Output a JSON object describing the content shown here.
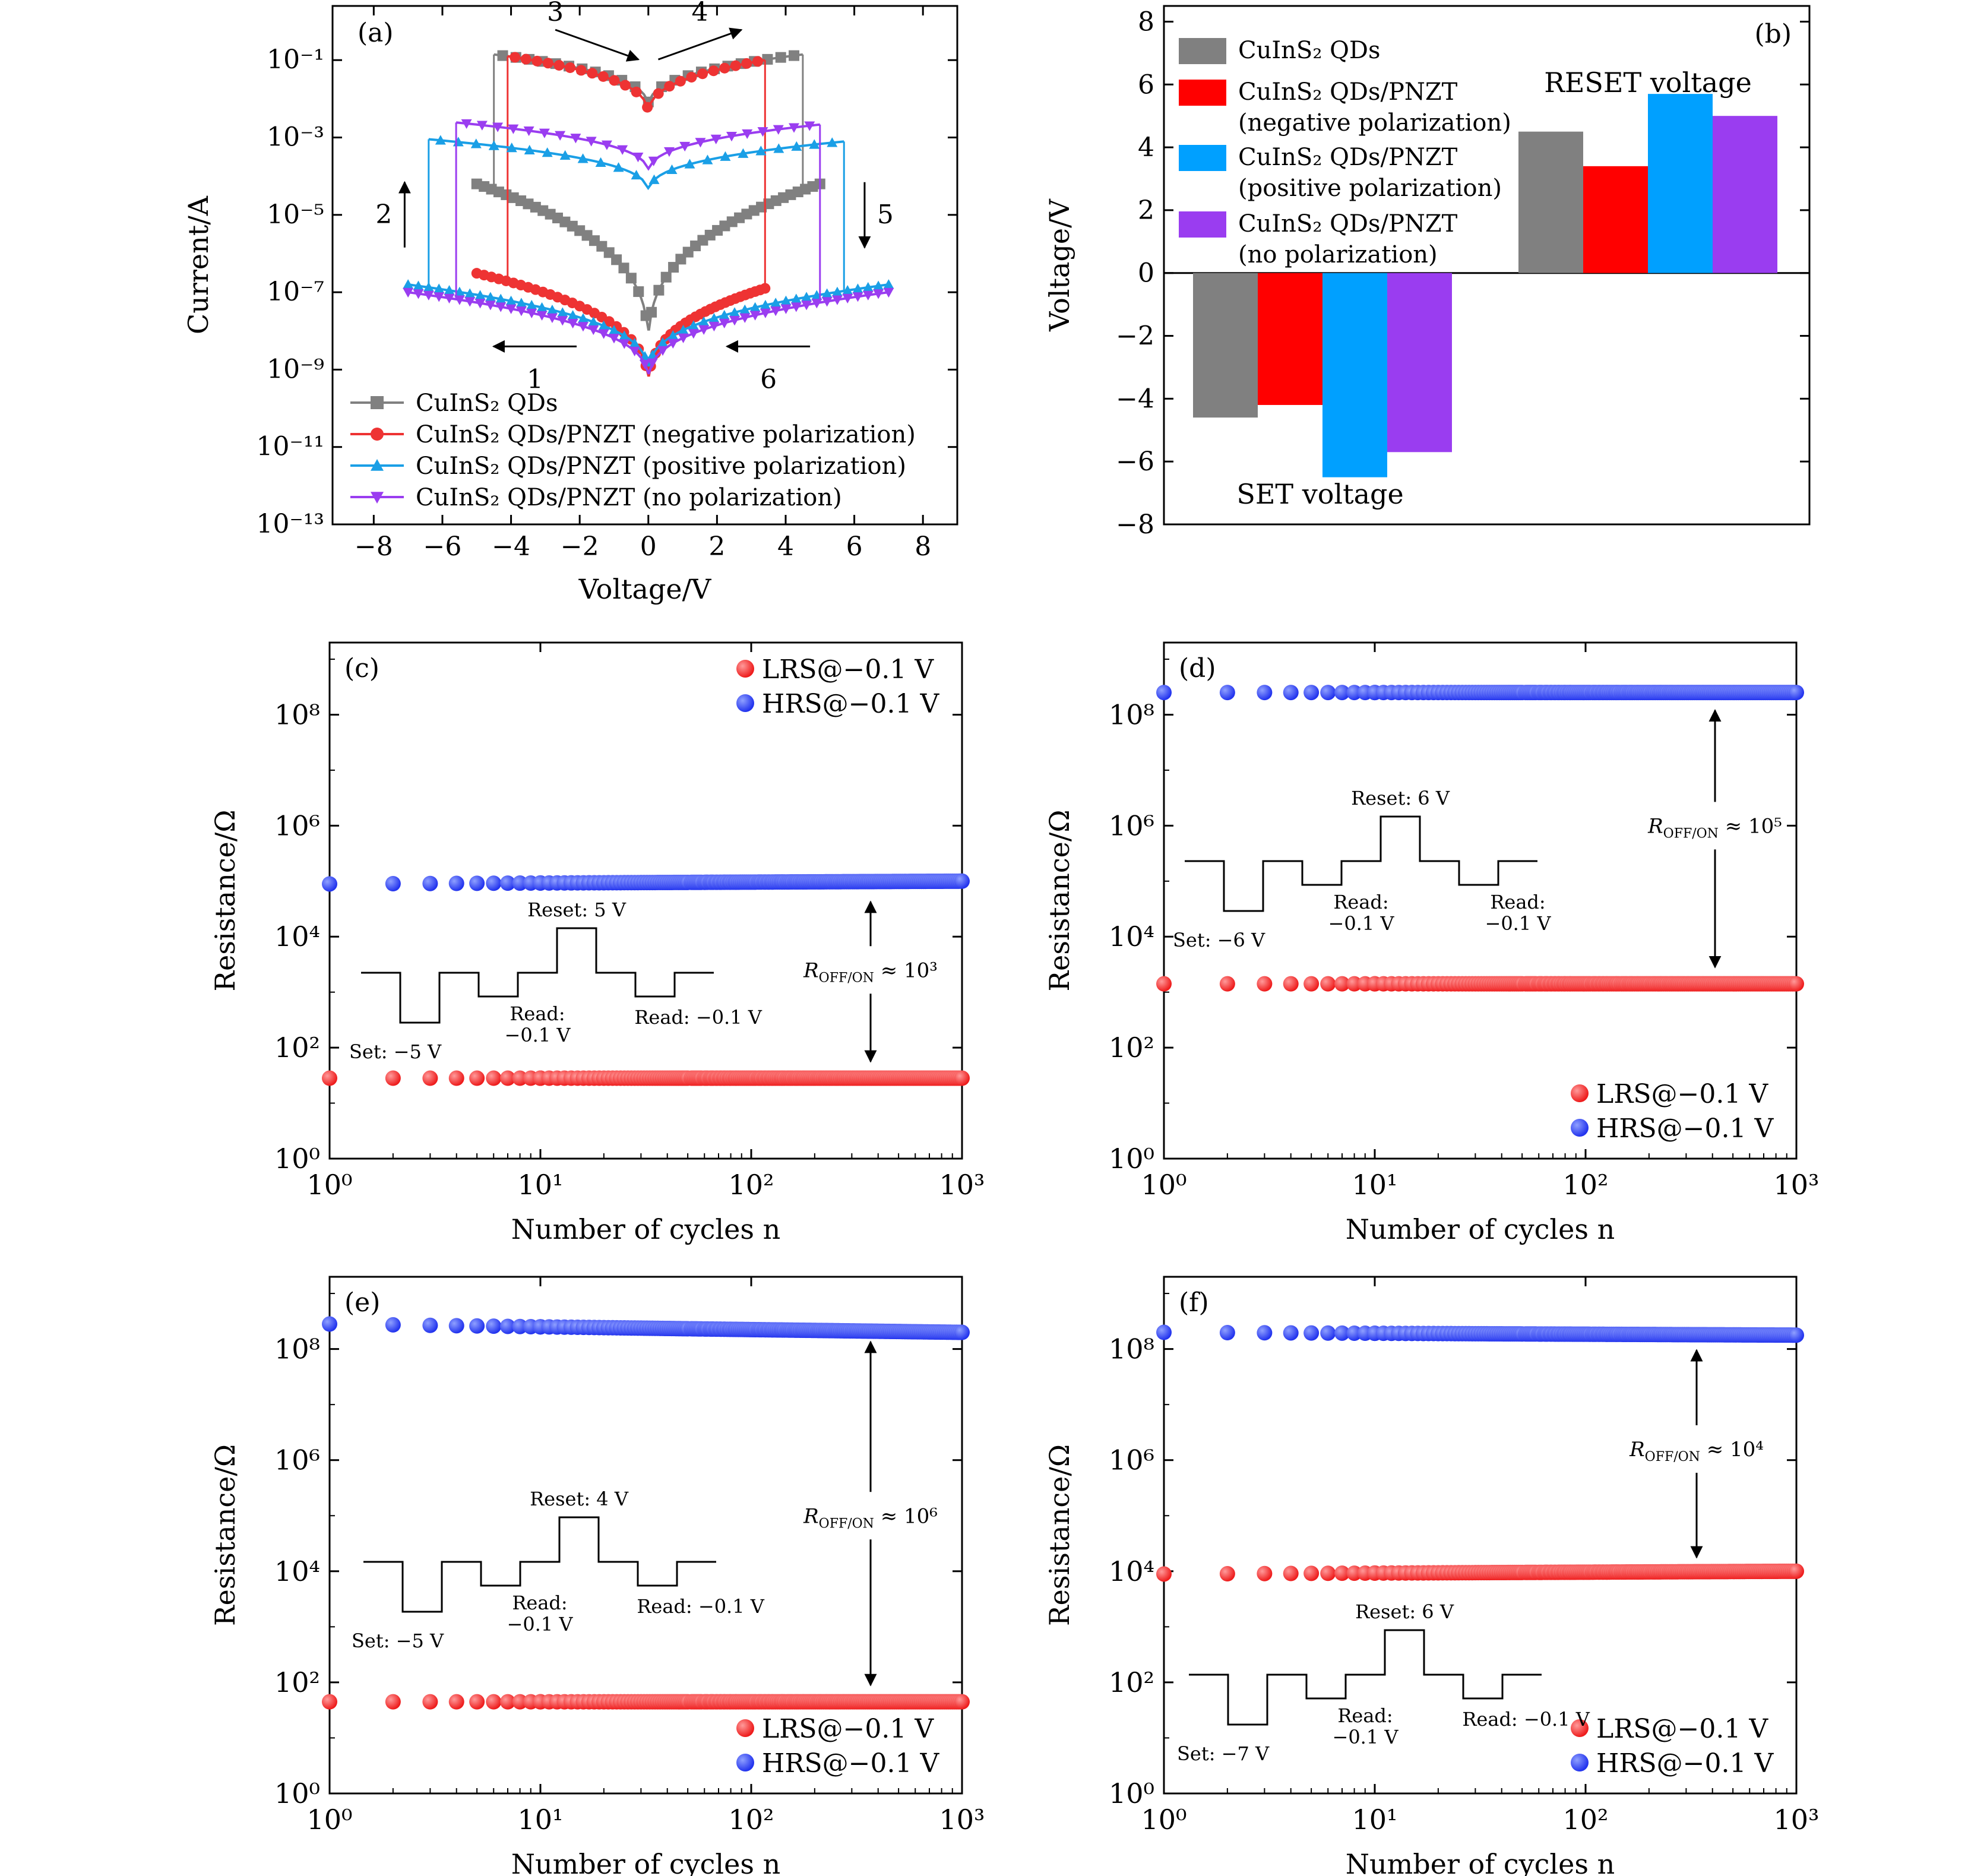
{
  "colors": {
    "gray": "#808080",
    "red": "#ee3333",
    "barRed": "#ff0000",
    "cyan": "#1a9fe6",
    "barCyan": "#00a0ff",
    "purple": "#9a3df0",
    "blue": "#2233ee",
    "lrs": "#ee1c1c",
    "axis": "#000000"
  },
  "chart_data": [
    {
      "id": "a",
      "panel_label": "(a)",
      "type": "line",
      "title": "",
      "xlabel": "Voltage/V",
      "ylabel": "Current/A",
      "xlim": [
        -9.2,
        9
      ],
      "ylim_log10": [
        -13,
        0.4
      ],
      "xscale": "linear",
      "yscale": "log",
      "xticks": [
        -8,
        -6,
        -4,
        -2,
        0,
        2,
        4,
        6,
        8
      ],
      "xtick_labels": [
        "−8",
        "−6",
        "−4",
        "−2",
        "0",
        "2",
        "4",
        "6",
        "8"
      ],
      "yticks_log10": [
        -13,
        -11,
        -9,
        -7,
        -5,
        -3,
        -1
      ],
      "ytick_labels": [
        "10⁻¹³",
        "10⁻¹¹",
        "10⁻⁹",
        "10⁻⁷",
        "10⁻⁵",
        "10⁻³",
        "10⁻¹"
      ],
      "legend": {
        "location": "bottom-left",
        "entries": [
          "CuInS₂ QDs",
          "CuInS₂ QDs/PNZT (negative polarization)",
          "CuInS₂ QDs/PNZT (positive polarization)",
          "CuInS₂ QDs/PNZT (no polarization)"
        ]
      },
      "series": [
        {
          "name": "CuInS₂ QDs",
          "color_key": "gray",
          "marker": "square",
          "set_voltage": -4.5,
          "reset_voltage": 4.5,
          "v_min": -5,
          "v_max": 5,
          "lrs_log10_at_vmax": -0.8,
          "lrs_log10_at_zero": -2.3,
          "hrs_log10_at_vmax": -4.2,
          "hrs_log10_at_zero": -8.6
        },
        {
          "name": "CuInS₂ QDs/PNZT (negative polarization)",
          "color_key": "red",
          "marker": "circle",
          "set_voltage": -4.1,
          "reset_voltage": 3.4,
          "v_min": -5,
          "v_max": 3.4,
          "lrs_log10_at_vmax": -1.0,
          "lrs_log10_at_zero": -2.5,
          "hrs_log10_at_vmax": -6.9,
          "hrs_log10_at_zero": -9.6
        },
        {
          "name": "CuInS₂ QDs/PNZT (positive polarization)",
          "color_key": "cyan",
          "marker": "triangle-up",
          "set_voltage": -6.4,
          "reset_voltage": 5.7,
          "v_min": -7,
          "v_max": 7,
          "lrs_log10_at_vmax": -3.0,
          "lrs_log10_at_zero": -4.5,
          "hrs_log10_at_vmax": -6.8,
          "hrs_log10_at_zero": -9.2
        },
        {
          "name": "CuInS₂ QDs/PNZT (no polarization)",
          "color_key": "purple",
          "marker": "triangle-down",
          "set_voltage": -5.6,
          "reset_voltage": 5.0,
          "v_min": -7,
          "v_max": 7,
          "lrs_log10_at_vmax": -2.5,
          "lrs_log10_at_zero": -4.0,
          "hrs_log10_at_vmax": -7.0,
          "hrs_log10_at_zero": -9.4
        }
      ],
      "annotations": [
        {
          "text": "1",
          "arrow": "left",
          "at_v": -3.3,
          "at_log10": -8.4
        },
        {
          "text": "2",
          "arrow": "up",
          "at_v": -7.1,
          "at_log10": -5.0
        },
        {
          "text": "3",
          "arrow": "right",
          "at_v": -1.5,
          "at_log10": -0.6
        },
        {
          "text": "4",
          "arrow": "up-right",
          "at_v": 1.5,
          "at_log10": -0.6
        },
        {
          "text": "5",
          "arrow": "down",
          "at_v": 6.3,
          "at_log10": -5.0
        },
        {
          "text": "6",
          "arrow": "left",
          "at_v": 3.5,
          "at_log10": -8.4
        }
      ]
    },
    {
      "id": "b",
      "panel_label": "(b)",
      "type": "bar",
      "xlabel": "",
      "ylabel": "Voltage/V",
      "ylim": [
        -8,
        8.5
      ],
      "yticks": [
        -8,
        -6,
        -4,
        -2,
        0,
        2,
        4,
        6,
        8
      ],
      "ytick_labels": [
        "−8",
        "−6",
        "−4",
        "−2",
        "0",
        "2",
        "4",
        "6",
        "8"
      ],
      "groups": [
        "SET voltage",
        "RESET voltage"
      ],
      "series": [
        {
          "name": "CuInS₂ QDs",
          "color_key": "gray",
          "values": [
            -4.6,
            4.5
          ]
        },
        {
          "name": "CuInS₂ QDs/PNZT (negative polarization)",
          "color_key": "barRed",
          "values": [
            -4.2,
            3.4
          ]
        },
        {
          "name": "CuInS₂ QDs/PNZT (positive polarization)",
          "color_key": "barCyan",
          "values": [
            -6.5,
            5.7
          ]
        },
        {
          "name": "CuInS₂ QDs/PNZT (no polarization)",
          "color_key": "purple",
          "values": [
            -5.7,
            5.0
          ]
        }
      ],
      "legend": {
        "location": "top-left",
        "entries": [
          [
            "CuInS₂ QDs"
          ],
          [
            "CuInS₂ QDs/PNZT",
            "(negative polarization)"
          ],
          [
            "CuInS₂ QDs/PNZT",
            "(positive polarization)"
          ],
          [
            "CuInS₂ QDs/PNZT",
            "(no polarization)"
          ]
        ]
      }
    },
    {
      "id": "c",
      "panel_label": "(c)",
      "type": "scatter",
      "xlabel": "Number of cycles n",
      "ylabel": "Resistance/Ω",
      "xscale": "log",
      "yscale": "log",
      "xlim_log10": [
        0,
        3
      ],
      "ylim_log10": [
        0,
        9.3
      ],
      "xticks_log10": [
        0,
        1,
        2,
        3
      ],
      "xtick_labels": [
        "10⁰",
        "10¹",
        "10²",
        "10³"
      ],
      "yticks_log10": [
        0,
        2,
        4,
        6,
        8
      ],
      "ytick_labels": [
        "10⁰",
        "10²",
        "10⁴",
        "10⁶",
        "10⁸"
      ],
      "series": [
        {
          "name": "LRS@−0.1 V",
          "color_key": "lrs",
          "log10_start": 1.45,
          "log10_end": 1.45
        },
        {
          "name": "HRS@−0.1 V",
          "color_key": "blue",
          "log10_start": 4.95,
          "log10_end": 5.0
        }
      ],
      "legend": {
        "location": "top-right"
      },
      "ratio_label": "≈ 10³",
      "pulse_labels": {
        "set": "Set: −5 V",
        "read1": [
          "Read:",
          "−0.1 V"
        ],
        "reset": "Reset: 5 V",
        "read2": "Read: −0.1 V"
      }
    },
    {
      "id": "d",
      "panel_label": "(d)",
      "type": "scatter",
      "xlabel": "Number of cycles n",
      "ylabel": "Resistance/Ω",
      "xscale": "log",
      "yscale": "log",
      "xlim_log10": [
        0,
        3
      ],
      "ylim_log10": [
        0,
        9.3
      ],
      "xticks_log10": [
        0,
        1,
        2,
        3
      ],
      "xtick_labels": [
        "10⁰",
        "10¹",
        "10²",
        "10³"
      ],
      "yticks_log10": [
        0,
        2,
        4,
        6,
        8
      ],
      "ytick_labels": [
        "10⁰",
        "10²",
        "10⁴",
        "10⁶",
        "10⁸"
      ],
      "series": [
        {
          "name": "LRS@−0.1 V",
          "color_key": "lrs",
          "log10_start": 3.15,
          "log10_end": 3.15
        },
        {
          "name": "HRS@−0.1 V",
          "color_key": "blue",
          "log10_start": 8.4,
          "log10_end": 8.4
        }
      ],
      "legend": {
        "location": "bottom-right"
      },
      "ratio_label": "≈ 10⁵",
      "pulse_labels": {
        "set": "Set: −6 V",
        "read1": [
          "Read:",
          "−0.1 V"
        ],
        "reset": "Reset: 6 V",
        "read2": [
          "Read:",
          "−0.1 V"
        ]
      }
    },
    {
      "id": "e",
      "panel_label": "(e)",
      "type": "scatter",
      "xlabel": "Number of cycles n",
      "ylabel": "Resistance/Ω",
      "xscale": "log",
      "yscale": "log",
      "xlim_log10": [
        0,
        3
      ],
      "ylim_log10": [
        0,
        9.3
      ],
      "xticks_log10": [
        0,
        1,
        2,
        3
      ],
      "xtick_labels": [
        "10⁰",
        "10¹",
        "10²",
        "10³"
      ],
      "yticks_log10": [
        0,
        2,
        4,
        6,
        8
      ],
      "ytick_labels": [
        "10⁰",
        "10²",
        "10⁴",
        "10⁶",
        "10⁸"
      ],
      "series": [
        {
          "name": "LRS@−0.1 V",
          "color_key": "lrs",
          "log10_start": 1.65,
          "log10_end": 1.65
        },
        {
          "name": "HRS@−0.1 V",
          "color_key": "blue",
          "log10_start": 8.45,
          "log10_end": 8.3
        }
      ],
      "legend": {
        "location": "bottom-right"
      },
      "ratio_label": "≈ 10⁶",
      "pulse_labels": {
        "set": "Set: −5 V",
        "read1": [
          "Read:",
          "−0.1 V"
        ],
        "reset": "Reset: 4 V",
        "read2": "Read: −0.1 V"
      }
    },
    {
      "id": "f",
      "panel_label": "(f)",
      "type": "scatter",
      "xlabel": "Number of cycles n",
      "ylabel": "Resistance/Ω",
      "xscale": "log",
      "yscale": "log",
      "xlim_log10": [
        0,
        3
      ],
      "ylim_log10": [
        0,
        9.3
      ],
      "xticks_log10": [
        0,
        1,
        2,
        3
      ],
      "xtick_labels": [
        "10⁰",
        "10¹",
        "10²",
        "10³"
      ],
      "yticks_log10": [
        0,
        2,
        4,
        6,
        8
      ],
      "ytick_labels": [
        "10⁰",
        "10²",
        "10⁴",
        "10⁶",
        "10⁸"
      ],
      "series": [
        {
          "name": "LRS@−0.1 V",
          "color_key": "lrs",
          "log10_start": 3.95,
          "log10_end": 4.0
        },
        {
          "name": "HRS@−0.1 V",
          "color_key": "blue",
          "log10_start": 8.3,
          "log10_end": 8.25
        }
      ],
      "legend": {
        "location": "bottom-right"
      },
      "ratio_label": "≈ 10⁴",
      "pulse_labels": {
        "set": "Set: −7 V",
        "read1": [
          "Read:",
          "−0.1 V"
        ],
        "reset": "Reset: 6 V",
        "read2": "Read: −0.1 V"
      }
    }
  ]
}
